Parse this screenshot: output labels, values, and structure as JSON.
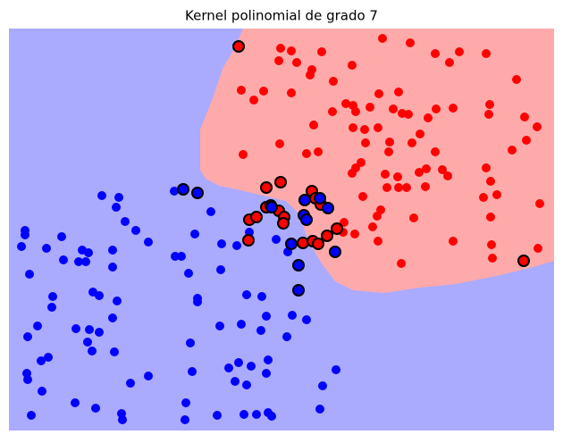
{
  "chart_data": {
    "type": "scatter",
    "title": "Kernel polinomial de grado 7",
    "xlim": [
      10,
      620
    ],
    "ylim": [
      482,
      32
    ],
    "grid": false,
    "series": [
      {
        "color": "#ff0000",
        "x": [
          314,
          326,
          360,
          428,
          459,
          487,
          514,
          544,
          312,
          332,
          349,
          394,
          347,
          373,
          503,
          578,
          270,
          295,
          284,
          326,
          424,
          446,
          387,
          395,
          414,
          372,
          398,
          440,
          450,
          457,
          488,
          507,
          548,
          547,
          587,
          351,
          395,
          408,
          423,
          479,
          470,
          601,
          313,
          436,
          461,
          589,
          409,
          272,
          343,
          356,
          404,
          398,
          394,
          435,
          487,
          573,
          431,
          469,
          477,
          495,
          501,
          544,
          445,
          433,
          446,
          455,
          476,
          406,
          549,
          556,
          541,
          604,
          426,
          422,
          463,
          549,
          384,
          397,
          417,
          423,
          507,
          550,
          602,
          551,
          449,
          385
        ],
        "y": [
          54,
          57,
          58,
          43,
          48,
          60,
          58,
          60,
          68,
          70,
          78,
          73,
          84,
          91,
          70,
          89,
          101,
          102,
          112,
          104,
          105,
          103,
          116,
          118,
          120,
          125,
          125,
          122,
          127,
          128,
          122,
          121,
          117,
          128,
          131,
          140,
          143,
          145,
          143,
          132,
          150,
          142,
          161,
          159,
          160,
          157,
          160,
          173,
          172,
          170,
          182,
          188,
          194,
          170,
          170,
          168,
          195,
          193,
          189,
          190,
          197,
          188,
          198,
          210,
          210,
          210,
          209,
          220,
          203,
          218,
          221,
          228,
          235,
          242,
          244,
          243,
          260,
          262,
          254,
          270,
          270,
          274,
          278,
          289,
          295,
          249
        ]
      },
      {
        "color": "#0000ff",
        "x": [
          114,
          133,
          130,
          195,
          236,
          140,
          28,
          28,
          152,
          69,
          218,
          24,
          52,
          92,
          99,
          166,
          248,
          265,
          279,
          309,
          126,
          196,
          203,
          71,
          88,
          96,
          322,
          126,
          247,
          211,
          33,
          59,
          104,
          111,
          221,
          221,
          276,
          293,
          58,
          131,
          298,
          327,
          343,
          126,
          85,
          42,
          100,
          111,
          246,
          270,
          292,
          31,
          98,
          321,
          213,
          103,
          128,
          54,
          46,
          300,
          267,
          376,
          30,
          31,
          166,
          215,
          256,
          281,
          298,
          47,
          146,
          263,
          276,
          361,
          84,
          208,
          107,
          136,
          35,
          137,
          207,
          243,
          273,
          287,
          300,
          304,
          358
        ],
        "y": [
          219,
          221,
          232,
          214,
          237,
          248,
          258,
          263,
          258,
          265,
          262,
          276,
          278,
          280,
          283,
          271,
          273,
          275,
          260,
          268,
          280,
          287,
          287,
          291,
          293,
          293,
          282,
          299,
          302,
          306,
          307,
          332,
          327,
          331,
          334,
          338,
          330,
          332,
          344,
          337,
          354,
          353,
          358,
          356,
          368,
          365,
          369,
          372,
          365,
          363,
          370,
          377,
          383,
          377,
          384,
          393,
          394,
          400,
          404,
          403,
          406,
          414,
          418,
          425,
          421,
          416,
          412,
          410,
          418,
          438,
          429,
          427,
          431,
          432,
          451,
          451,
          457,
          463,
          465,
          470,
          470,
          465,
          464,
          464,
          462,
          466,
          458
        ]
      },
      {
        "color": "#ff0000",
        "edgecolor": "#000000",
        "x": [
          267,
          298,
          314,
          279,
          287,
          298,
          303,
          312,
          318,
          317,
          349,
          353,
          359,
          278,
          339,
          350,
          356,
          366,
          377,
          586
        ],
        "y": [
          52,
          210,
          204,
          246,
          243,
          232,
          230,
          236,
          243,
          250,
          214,
          222,
          229,
          269,
          272,
          270,
          273,
          264,
          256,
          292
        ]
      },
      {
        "color": "#0000ff",
        "edgecolor": "#000000",
        "x": [
          205,
          221,
          341,
          358,
          367,
          340,
          343,
          326,
          375,
          334,
          334,
          304
        ],
        "y": [
          212,
          216,
          224,
          222,
          233,
          241,
          246,
          273,
          282,
          297,
          325,
          232
        ]
      }
    ]
  }
}
